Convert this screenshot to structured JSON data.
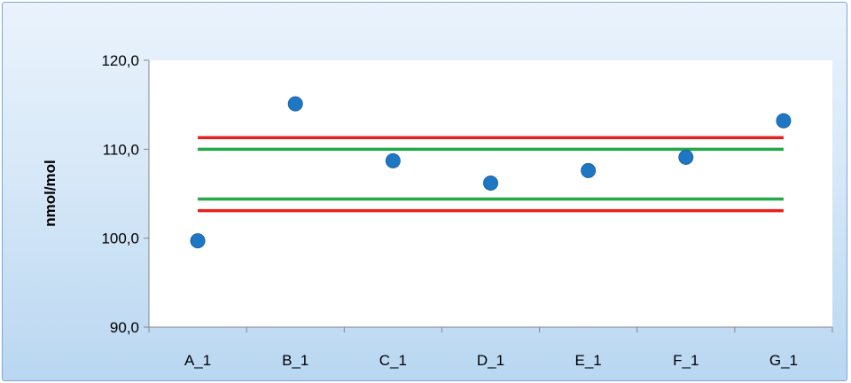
{
  "chart_data": {
    "type": "scatter",
    "title": "",
    "xlabel": "",
    "ylabel": "nmol/mol",
    "categories": [
      "A_1",
      "B_1",
      "C_1",
      "D_1",
      "E_1",
      "F_1",
      "G_1"
    ],
    "ylim": [
      90.0,
      120.0
    ],
    "yticks": [
      "90,0",
      "100,0",
      "110,0",
      "120,0"
    ],
    "ytick_values": [
      90,
      100,
      110,
      120
    ],
    "grid": false,
    "legend": "none",
    "series": [
      {
        "values": [
          99.7,
          115.1,
          108.7,
          106.2,
          107.6,
          109.1,
          113.2
        ],
        "color": "#1f77c4"
      }
    ],
    "reference_lines": [
      {
        "y": 111.3,
        "color": "#e8201c"
      },
      {
        "y": 110.0,
        "color": "#23a84a"
      },
      {
        "y": 104.4,
        "color": "#23a84a"
      },
      {
        "y": 103.1,
        "color": "#e8201c"
      }
    ]
  }
}
